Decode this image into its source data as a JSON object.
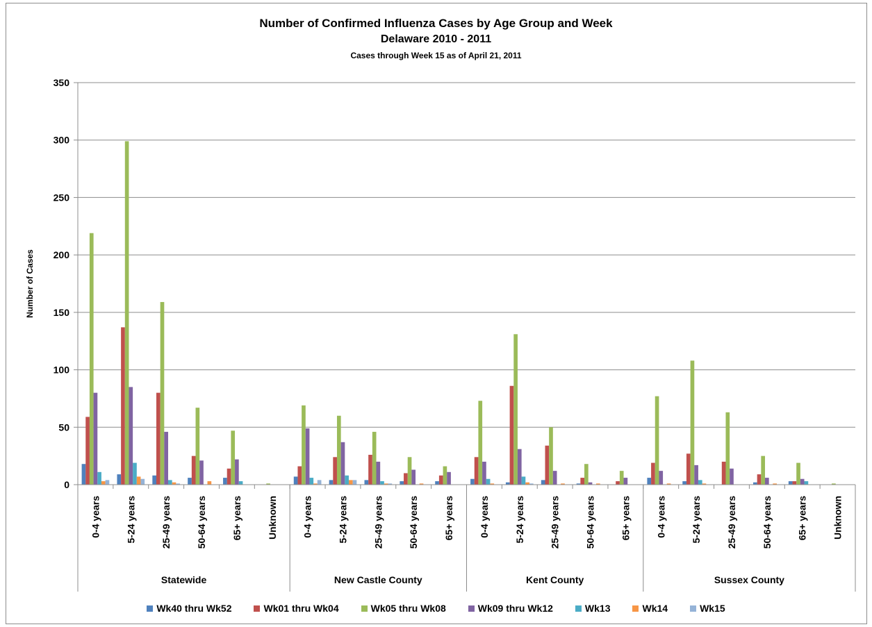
{
  "chart_data": {
    "type": "bar",
    "title": "Number of Confirmed Influenza Cases by Age Group and Week",
    "subtitle": "Delaware 2010 - 2011",
    "note": "Cases through Week 15 as of April 21, 2011",
    "ylabel": "Number of Cases",
    "xlabel": "",
    "ylim": [
      0,
      350
    ],
    "yticks": [
      0,
      50,
      100,
      150,
      200,
      250,
      300,
      350
    ],
    "grid": true,
    "legend_position": "bottom",
    "groups": [
      {
        "name": "Statewide",
        "categories": [
          "0-4 years",
          "5-24 years",
          "25-49 years",
          "50-64 years",
          "65+ years",
          "Unknown"
        ]
      },
      {
        "name": "New Castle County",
        "categories": [
          "0-4 years",
          "5-24 years",
          "25-49 years",
          "50-64 years",
          "65+ years"
        ]
      },
      {
        "name": "Kent County",
        "categories": [
          "0-4 years",
          "5-24 years",
          "25-49 years",
          "50-64 years",
          "65+ years"
        ]
      },
      {
        "name": "Sussex County",
        "categories": [
          "0-4 years",
          "5-24 years",
          "25-49 years",
          "50-64 years",
          "65+ years",
          "Unknown"
        ]
      }
    ],
    "series": [
      {
        "name": "Wk40 thru Wk52",
        "color": "#4f81bd",
        "values": [
          18,
          9,
          8,
          6,
          6,
          0,
          7,
          4,
          4,
          3,
          3,
          5,
          2,
          4,
          1,
          0,
          6,
          3,
          0,
          2,
          3,
          0
        ]
      },
      {
        "name": "Wk01 thru Wk04",
        "color": "#c0504d",
        "values": [
          59,
          137,
          80,
          25,
          14,
          0,
          16,
          24,
          26,
          10,
          8,
          24,
          86,
          34,
          6,
          3,
          19,
          27,
          20,
          9,
          3,
          0
        ]
      },
      {
        "name": "Wk05 thru Wk08",
        "color": "#9bbb59",
        "values": [
          219,
          299,
          159,
          67,
          47,
          1,
          69,
          60,
          46,
          24,
          16,
          73,
          131,
          50,
          18,
          12,
          77,
          108,
          63,
          25,
          19,
          1
        ]
      },
      {
        "name": "Wk09 thru Wk12",
        "color": "#8064a2",
        "values": [
          80,
          85,
          46,
          21,
          22,
          0,
          49,
          37,
          20,
          13,
          11,
          20,
          31,
          12,
          2,
          6,
          12,
          17,
          14,
          6,
          5,
          0
        ]
      },
      {
        "name": "Wk13",
        "color": "#4bacc6",
        "values": [
          11,
          19,
          4,
          0,
          3,
          0,
          6,
          8,
          3,
          0,
          0,
          5,
          7,
          0,
          0,
          0,
          0,
          4,
          0,
          0,
          3,
          0
        ]
      },
      {
        "name": "Wk14",
        "color": "#f79646",
        "values": [
          3,
          7,
          2,
          3,
          0,
          0,
          1,
          4,
          1,
          1,
          0,
          1,
          2,
          1,
          1,
          0,
          1,
          1,
          0,
          1,
          0,
          0
        ]
      },
      {
        "name": "Wk15",
        "color": "#95b3d7",
        "values": [
          4,
          5,
          1,
          0,
          0,
          0,
          4,
          4,
          1,
          0,
          0,
          0,
          1,
          0,
          0,
          0,
          0,
          0,
          0,
          0,
          0,
          0
        ]
      }
    ]
  }
}
